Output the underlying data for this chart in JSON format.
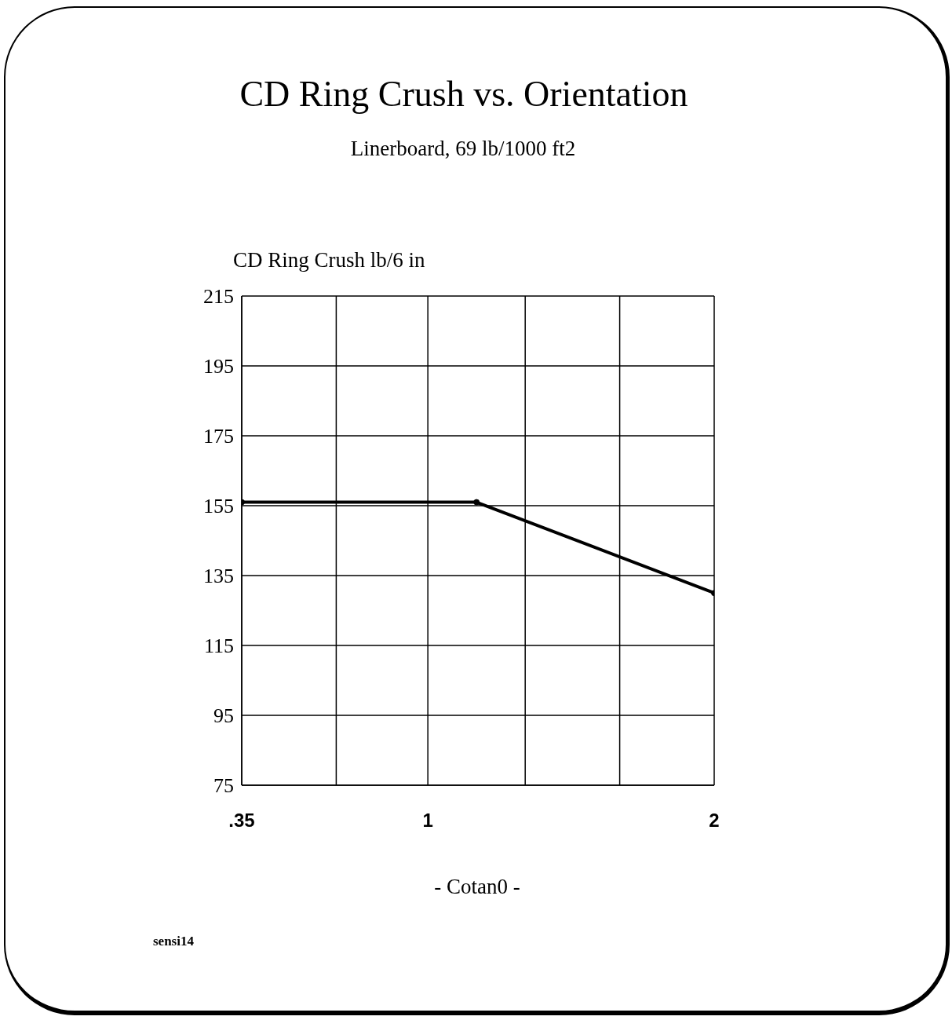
{
  "chart_data": {
    "type": "line",
    "title": "CD Ring Crush vs. Orientation",
    "subtitle": "Linerboard, 69 lb/1000 ft2",
    "ylabel": "CD Ring Crush lb/6 in",
    "xlabel": "- Cotan0 -",
    "annotations": [
      "sensi14"
    ],
    "x": [
      0.35,
      1.17,
      2
    ],
    "values": [
      156,
      156,
      130
    ],
    "color": "#000000",
    "xlim": [
      0.35,
      2
    ],
    "xticks": [
      {
        "value": 0.35,
        "label": ".35"
      },
      {
        "value": 0.68,
        "label": null
      },
      1,
      {
        "value": 1.34,
        "label": null
      },
      {
        "value": 1.67,
        "label": null
      },
      2
    ],
    "ylim": [
      75,
      215
    ],
    "yticks": [
      75,
      95,
      115,
      135,
      155,
      175,
      195,
      215
    ],
    "grid": true,
    "marker": "circle",
    "line_style": "solid"
  }
}
